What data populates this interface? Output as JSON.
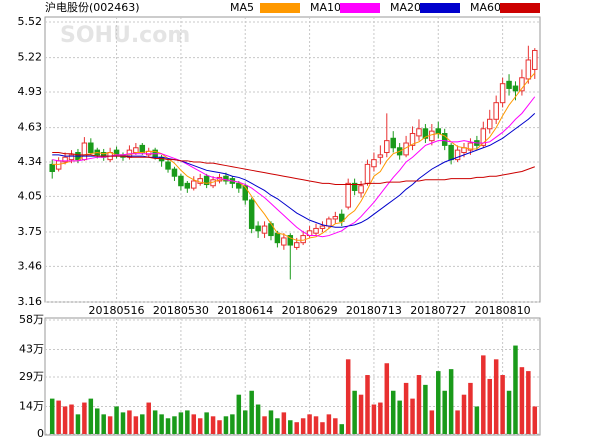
{
  "chart_data": {
    "type": "candlestick",
    "title": "沪电股份(002463)",
    "watermark": "SOHU.com",
    "up_color": "#e83030",
    "down_color": "#1a9a1a",
    "categories": [
      null,
      null,
      null,
      null,
      null,
      null,
      null,
      null,
      null,
      null,
      "20180516",
      null,
      null,
      null,
      null,
      null,
      null,
      null,
      null,
      null,
      "20180530",
      null,
      null,
      null,
      null,
      null,
      null,
      null,
      null,
      null,
      "20180614",
      null,
      null,
      null,
      null,
      null,
      null,
      null,
      null,
      null,
      "20180629",
      null,
      null,
      null,
      null,
      null,
      null,
      null,
      null,
      null,
      "20180713",
      null,
      null,
      null,
      null,
      null,
      null,
      null,
      null,
      null,
      "20180727",
      null,
      null,
      null,
      null,
      null,
      null,
      null,
      null,
      null,
      "20180810",
      null,
      null,
      null,
      null,
      null
    ],
    "open": [
      4.32,
      4.28,
      4.34,
      4.36,
      4.42,
      4.36,
      4.5,
      4.44,
      4.42,
      4.36,
      4.44,
      4.4,
      4.38,
      4.42,
      4.48,
      4.4,
      4.44,
      4.38,
      4.34,
      4.28,
      4.22,
      4.16,
      4.12,
      4.16,
      4.22,
      4.14,
      4.18,
      4.22,
      4.2,
      4.16,
      4.14,
      4.02,
      3.8,
      3.74,
      3.82,
      3.74,
      3.64,
      3.72,
      3.62,
      3.66,
      3.72,
      3.74,
      3.78,
      3.8,
      3.86,
      3.9,
      3.96,
      4.16,
      4.08,
      4.16,
      4.3,
      4.38,
      4.42,
      4.54,
      4.46,
      4.4,
      4.48,
      4.56,
      4.62,
      4.52,
      4.62,
      4.58,
      4.48,
      4.36,
      4.42,
      4.44,
      4.52,
      4.48,
      4.62,
      4.7,
      4.84,
      5.02,
      4.98,
      4.94,
      5.04,
      5.12
    ],
    "close": [
      4.26,
      4.35,
      4.38,
      4.4,
      4.36,
      4.5,
      4.42,
      4.4,
      4.38,
      4.42,
      4.4,
      4.38,
      4.44,
      4.46,
      4.42,
      4.43,
      4.38,
      4.35,
      4.28,
      4.22,
      4.14,
      4.12,
      4.18,
      4.2,
      4.15,
      4.19,
      4.21,
      4.18,
      4.16,
      4.12,
      4.02,
      3.78,
      3.76,
      3.8,
      3.72,
      3.66,
      3.7,
      3.64,
      3.66,
      3.72,
      3.76,
      3.78,
      3.8,
      3.86,
      3.88,
      3.84,
      4.16,
      4.1,
      4.14,
      4.32,
      4.36,
      4.4,
      4.52,
      4.46,
      4.4,
      4.5,
      4.58,
      4.62,
      4.54,
      4.6,
      4.58,
      4.48,
      4.36,
      4.44,
      4.46,
      4.5,
      4.48,
      4.62,
      4.7,
      4.84,
      5.0,
      4.96,
      4.94,
      5.05,
      5.2,
      5.28
    ],
    "low": [
      4.2,
      4.26,
      4.32,
      4.33,
      4.33,
      4.35,
      4.4,
      4.37,
      4.35,
      4.34,
      4.37,
      4.35,
      4.36,
      4.4,
      4.4,
      4.38,
      4.36,
      4.3,
      4.25,
      4.18,
      4.1,
      4.08,
      4.1,
      4.14,
      4.12,
      4.12,
      4.16,
      4.15,
      4.12,
      4.08,
      3.98,
      3.74,
      3.7,
      3.7,
      3.68,
      3.62,
      3.6,
      3.35,
      3.6,
      3.64,
      3.7,
      3.72,
      3.75,
      3.78,
      3.82,
      3.8,
      3.94,
      4.06,
      4.04,
      4.14,
      4.26,
      4.32,
      4.38,
      4.42,
      4.36,
      4.38,
      4.44,
      4.52,
      4.5,
      4.48,
      4.54,
      4.44,
      4.32,
      4.34,
      4.38,
      4.4,
      4.44,
      4.46,
      4.58,
      4.66,
      4.8,
      4.9,
      4.86,
      4.9,
      5.0,
      5.04
    ],
    "high": [
      4.36,
      4.38,
      4.42,
      4.44,
      4.45,
      4.55,
      4.54,
      4.46,
      4.45,
      4.46,
      4.47,
      4.42,
      4.48,
      4.5,
      4.5,
      4.46,
      4.46,
      4.4,
      4.36,
      4.3,
      4.24,
      4.18,
      4.22,
      4.24,
      4.24,
      4.22,
      4.24,
      4.25,
      4.22,
      4.18,
      4.16,
      4.04,
      3.84,
      3.84,
      3.84,
      3.76,
      3.74,
      3.74,
      3.7,
      3.76,
      3.8,
      3.82,
      3.84,
      3.88,
      3.92,
      3.94,
      4.2,
      4.2,
      4.18,
      4.36,
      4.42,
      4.48,
      4.75,
      4.6,
      4.5,
      4.56,
      4.64,
      4.7,
      4.66,
      4.66,
      4.68,
      4.62,
      4.5,
      4.48,
      4.5,
      4.54,
      4.56,
      4.68,
      4.78,
      4.9,
      5.05,
      5.08,
      5.02,
      5.12,
      5.32,
      5.3
    ],
    "ylim": [
      3.16,
      5.52
    ],
    "yticks": [
      3.16,
      3.46,
      3.75,
      4.05,
      4.34,
      4.63,
      4.93,
      5.22,
      5.52
    ],
    "grid": true,
    "series": [
      {
        "name": "MA5",
        "color": "#ff9900",
        "values": [
          4.32,
          4.32,
          4.33,
          4.35,
          4.35,
          4.4,
          4.41,
          4.42,
          4.41,
          4.42,
          4.4,
          4.4,
          4.4,
          4.42,
          4.42,
          4.43,
          4.43,
          4.41,
          4.37,
          4.33,
          4.27,
          4.22,
          4.19,
          4.17,
          4.16,
          4.17,
          4.19,
          4.19,
          4.18,
          4.17,
          4.13,
          4.05,
          3.97,
          3.9,
          3.82,
          3.74,
          3.73,
          3.7,
          3.68,
          3.68,
          3.7,
          3.71,
          3.74,
          3.78,
          3.82,
          3.83,
          3.89,
          3.93,
          4.01,
          4.11,
          4.22,
          4.26,
          4.35,
          4.41,
          4.43,
          4.46,
          4.49,
          4.51,
          4.55,
          4.57,
          4.58,
          4.56,
          4.51,
          4.47,
          4.46,
          4.45,
          4.45,
          4.5,
          4.55,
          4.63,
          4.73,
          4.82,
          4.89,
          4.96,
          5.03,
          5.09
        ]
      },
      {
        "name": "MA10",
        "color": "#ff00ff",
        "values": [
          4.36,
          4.35,
          4.35,
          4.35,
          4.35,
          4.36,
          4.37,
          4.38,
          4.38,
          4.39,
          4.4,
          4.4,
          4.41,
          4.41,
          4.41,
          4.41,
          4.41,
          4.41,
          4.39,
          4.37,
          4.35,
          4.32,
          4.29,
          4.26,
          4.23,
          4.21,
          4.2,
          4.19,
          4.18,
          4.17,
          4.15,
          4.12,
          4.08,
          4.04,
          3.99,
          3.94,
          3.89,
          3.84,
          3.79,
          3.75,
          3.72,
          3.72,
          3.71,
          3.72,
          3.74,
          3.76,
          3.8,
          3.83,
          3.88,
          3.94,
          4.0,
          4.07,
          4.14,
          4.21,
          4.27,
          4.34,
          4.38,
          4.43,
          4.48,
          4.5,
          4.52,
          4.52,
          4.51,
          4.51,
          4.52,
          4.51,
          4.5,
          4.5,
          4.51,
          4.55,
          4.59,
          4.64,
          4.7,
          4.75,
          4.82,
          4.89
        ]
      },
      {
        "name": "MA20",
        "color": "#0000cc",
        "values": [
          4.4,
          4.4,
          4.39,
          4.39,
          4.39,
          4.39,
          4.39,
          4.39,
          4.39,
          4.39,
          4.39,
          4.39,
          4.39,
          4.39,
          4.39,
          4.38,
          4.38,
          4.38,
          4.37,
          4.36,
          4.35,
          4.33,
          4.31,
          4.29,
          4.27,
          4.26,
          4.25,
          4.24,
          4.22,
          4.21,
          4.19,
          4.16,
          4.13,
          4.1,
          4.06,
          4.03,
          3.99,
          3.95,
          3.91,
          3.88,
          3.85,
          3.83,
          3.81,
          3.8,
          3.79,
          3.79,
          3.8,
          3.81,
          3.83,
          3.86,
          3.9,
          3.94,
          3.98,
          4.02,
          4.06,
          4.11,
          4.15,
          4.2,
          4.24,
          4.28,
          4.31,
          4.34,
          4.36,
          4.38,
          4.4,
          4.42,
          4.44,
          4.46,
          4.48,
          4.51,
          4.54,
          4.58,
          4.62,
          4.66,
          4.7,
          4.75
        ]
      },
      {
        "name": "MA60",
        "color": "#cc0000",
        "values": [
          4.42,
          4.42,
          4.41,
          4.41,
          4.4,
          4.4,
          4.4,
          4.39,
          4.39,
          4.39,
          4.39,
          4.39,
          4.38,
          4.38,
          4.38,
          4.38,
          4.37,
          4.37,
          4.36,
          4.36,
          4.35,
          4.35,
          4.34,
          4.34,
          4.33,
          4.33,
          4.32,
          4.31,
          4.3,
          4.29,
          4.28,
          4.27,
          4.26,
          4.25,
          4.24,
          4.23,
          4.22,
          4.21,
          4.2,
          4.19,
          4.18,
          4.17,
          4.16,
          4.16,
          4.15,
          4.15,
          4.15,
          4.15,
          4.15,
          4.16,
          4.16,
          4.16,
          4.17,
          4.17,
          4.17,
          4.18,
          4.18,
          4.18,
          4.19,
          4.19,
          4.19,
          4.19,
          4.2,
          4.2,
          4.2,
          4.2,
          4.21,
          4.21,
          4.22,
          4.22,
          4.23,
          4.24,
          4.25,
          4.26,
          4.28,
          4.3
        ]
      }
    ],
    "volume": {
      "values": [
        18,
        17,
        14,
        15,
        10,
        16,
        18,
        13,
        10,
        9,
        14,
        11,
        12,
        9,
        10,
        16,
        12,
        10,
        8,
        9,
        11,
        12,
        10,
        8,
        11,
        9,
        7,
        9,
        10,
        20,
        12,
        22,
        15,
        9,
        12,
        8,
        11,
        7,
        6,
        8,
        10,
        9,
        6,
        10,
        8,
        5,
        38,
        22,
        20,
        30,
        15,
        16,
        36,
        22,
        17,
        26,
        18,
        30,
        25,
        12,
        32,
        22,
        33,
        12,
        20,
        26,
        14,
        40,
        28,
        38,
        30,
        22,
        45,
        34,
        32,
        14
      ],
      "ylim": [
        0,
        58
      ],
      "yticks": [
        0,
        {
          "value": 14,
          "label": "14万"
        },
        {
          "value": 29,
          "label": "29万"
        },
        {
          "value": 43,
          "label": "43万"
        },
        {
          "value": 58,
          "label": "58万"
        }
      ]
    }
  }
}
